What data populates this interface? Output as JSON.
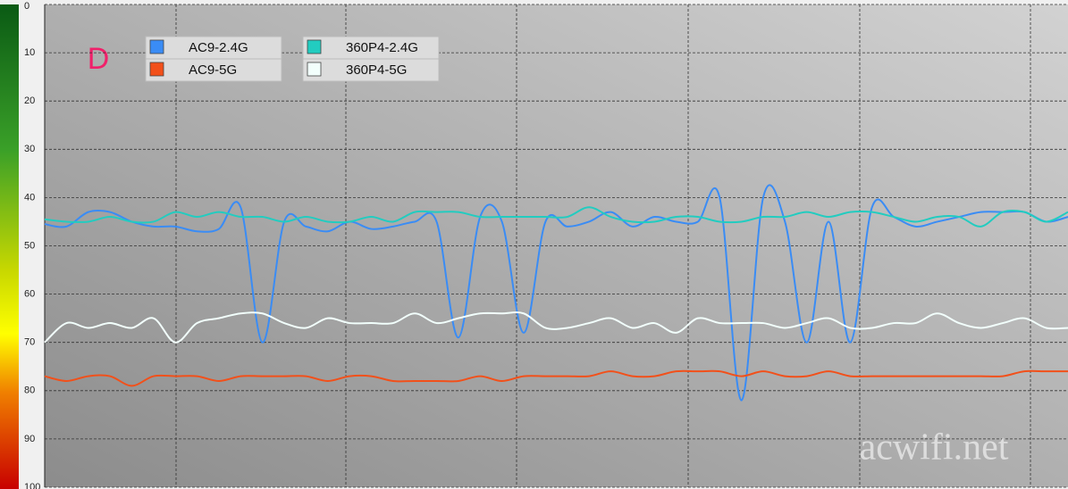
{
  "chart_data": {
    "type": "line",
    "annotations": [
      "D",
      "acwifi.net"
    ],
    "ylim": [
      0,
      100
    ],
    "inverted_y": true,
    "yticks": [
      0,
      10,
      20,
      30,
      40,
      50,
      60,
      70,
      80,
      90,
      100
    ],
    "grid": true,
    "legend": "top-left",
    "smooth": true,
    "series": [
      {
        "name": "AC9-2.4G",
        "color": "#3a8cf5",
        "values": [
          45.5,
          46,
          43,
          43,
          45,
          46,
          46,
          47,
          46.5,
          42,
          70,
          45,
          46,
          47,
          45,
          46.5,
          46,
          45,
          45,
          69,
          44,
          45,
          68,
          45,
          46,
          45,
          43,
          46,
          44,
          45,
          45,
          40,
          82,
          40,
          45,
          70,
          45,
          70,
          42,
          44,
          46,
          45,
          44,
          43,
          43,
          43,
          45,
          44
        ]
      },
      {
        "name": "AC9-5G",
        "color": "#f2501a",
        "values": [
          77,
          78,
          77,
          77,
          79,
          77,
          77,
          77,
          78,
          77,
          77,
          77,
          77,
          78,
          77,
          77,
          78,
          78,
          78,
          78,
          77,
          78,
          77,
          77,
          77,
          77,
          76,
          77,
          77,
          76,
          76,
          76,
          77,
          76,
          77,
          77,
          76,
          77,
          77,
          77,
          77,
          77,
          77,
          77,
          77,
          76,
          76,
          76
        ]
      },
      {
        "name": "360P4-2.4G",
        "color": "#22ccc0",
        "values": [
          44.5,
          45,
          45,
          44,
          45,
          45,
          43,
          44,
          43,
          44,
          44,
          45,
          44,
          45,
          45,
          44,
          45,
          43,
          43,
          43,
          44,
          44,
          44,
          44,
          44,
          42,
          44,
          45,
          45,
          44,
          44,
          45,
          45,
          44,
          44,
          43,
          44,
          43,
          43,
          44,
          45,
          44,
          44,
          46,
          43,
          43,
          45,
          43
        ]
      },
      {
        "name": "360P4-5G",
        "color": "#f2fffc",
        "values": [
          70,
          66,
          67,
          66,
          67,
          65,
          70,
          66,
          65,
          64,
          64,
          66,
          67,
          65,
          66,
          66,
          66,
          64,
          66,
          65,
          64,
          64,
          64,
          67,
          67,
          66,
          65,
          67,
          66,
          68,
          65,
          66,
          66,
          66,
          67,
          66,
          65,
          67,
          67,
          66,
          66,
          64,
          66,
          67,
          66,
          65,
          67,
          67
        ]
      }
    ]
  }
}
